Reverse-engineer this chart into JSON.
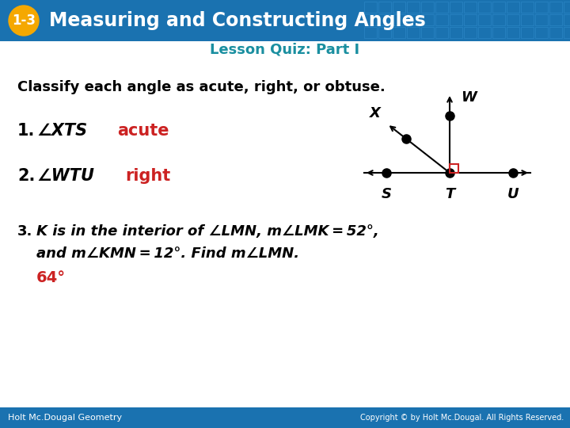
{
  "header_bg": "#1a72b0",
  "header_text": "Measuring and Constructing Angles",
  "header_number": "1-3",
  "header_number_bg": "#f5a800",
  "body_bg": "#ffffff",
  "subtitle_text": "Lesson Quiz: Part I",
  "subtitle_color": "#1a8fa0",
  "classify_text": "Classify each angle as acute, right, or obtuse.",
  "item1_num": "1.",
  "item1_angle": "∠XTS",
  "item1_answer": "acute",
  "item2_num": "2.",
  "item2_angle": "∠WTU",
  "item2_answer": "right",
  "item3_bold": "3.",
  "item3_line1_rest": " K is in the interior of ∠LMN, m∠LMK = 52°,",
  "item3_line2": "    and m∠KMN = 12°. Find m∠LMN.",
  "item3_answer": "64°",
  "answer_color": "#cc2222",
  "text_color": "#000000",
  "footer_left": "Holt Mc.Dougal Geometry",
  "footer_right": "Copyright © by Holt Mc.Dougal. All Rights Reserved.",
  "footer_bg": "#1a72b0",
  "footer_text_color": "#ffffff",
  "grid_color": "#2a85c5"
}
